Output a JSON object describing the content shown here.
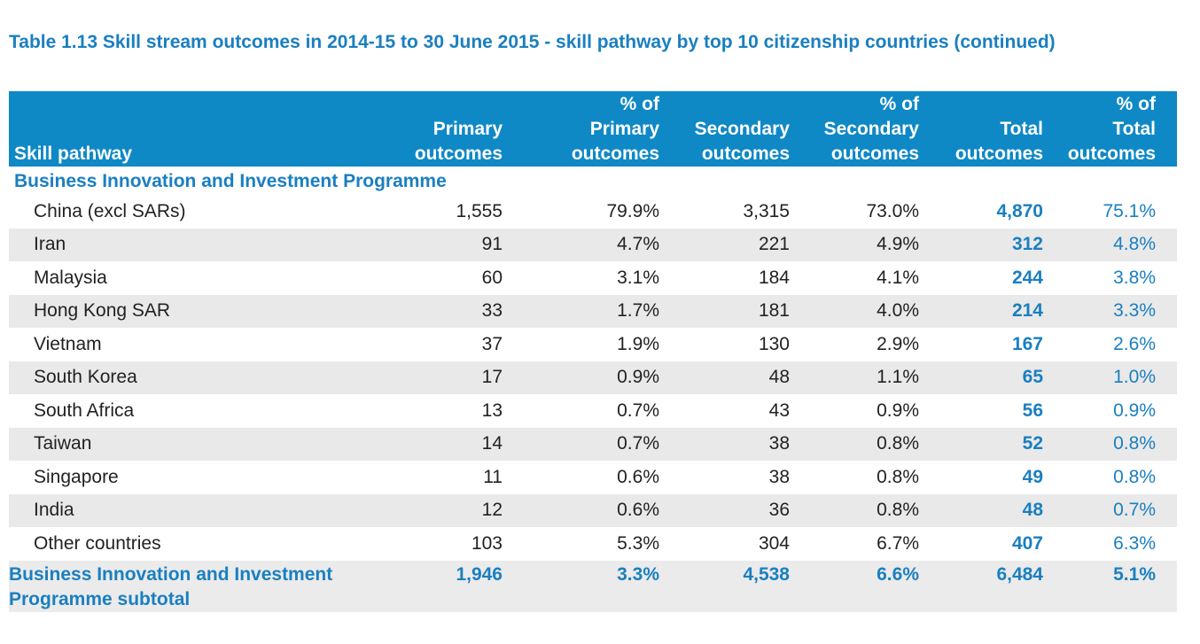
{
  "title": "Table 1.13 Skill stream outcomes in 2014-15 to 30 June 2015 - skill pathway by top 10 citizenship countries (continued)",
  "headers": [
    {
      "lines": [
        "Skill pathway"
      ]
    },
    {
      "lines": [
        "Primary",
        "outcomes"
      ]
    },
    {
      "lines": [
        "% of",
        "Primary",
        "outcomes"
      ]
    },
    {
      "lines": [
        "Secondary",
        "outcomes"
      ]
    },
    {
      "lines": [
        "% of",
        "Secondary",
        "outcomes"
      ]
    },
    {
      "lines": [
        "Total",
        "outcomes"
      ]
    },
    {
      "lines": [
        "% of",
        "Total",
        "outcomes"
      ]
    }
  ],
  "section_label": "Business Innovation and Investment Programme",
  "rows": [
    [
      "China (excl SARs)",
      "1,555",
      "79.9%",
      "3,315",
      "73.0%",
      "4,870",
      "75.1%"
    ],
    [
      "Iran",
      "91",
      "4.7%",
      "221",
      "4.9%",
      "312",
      "4.8%"
    ],
    [
      "Malaysia",
      "60",
      "3.1%",
      "184",
      "4.1%",
      "244",
      "3.8%"
    ],
    [
      "Hong Kong SAR",
      "33",
      "1.7%",
      "181",
      "4.0%",
      "214",
      "3.3%"
    ],
    [
      "Vietnam",
      "37",
      "1.9%",
      "130",
      "2.9%",
      "167",
      "2.6%"
    ],
    [
      "South Korea",
      "17",
      "0.9%",
      "48",
      "1.1%",
      "65",
      "1.0%"
    ],
    [
      "South Africa",
      "13",
      "0.7%",
      "43",
      "0.9%",
      "56",
      "0.9%"
    ],
    [
      "Taiwan",
      "14",
      "0.7%",
      "38",
      "0.8%",
      "52",
      "0.8%"
    ],
    [
      "Singapore",
      "11",
      "0.6%",
      "38",
      "0.8%",
      "49",
      "0.8%"
    ],
    [
      "India",
      "12",
      "0.6%",
      "36",
      "0.8%",
      "48",
      "0.7%"
    ],
    [
      "Other countries",
      "103",
      "5.3%",
      "304",
      "6.7%",
      "407",
      "6.3%"
    ]
  ],
  "subtotal": [
    "Business Innovation and Investment Programme subtotal",
    "1,946",
    "3.3%",
    "4,538",
    "6.6%",
    "6,484",
    "5.1%"
  ]
}
